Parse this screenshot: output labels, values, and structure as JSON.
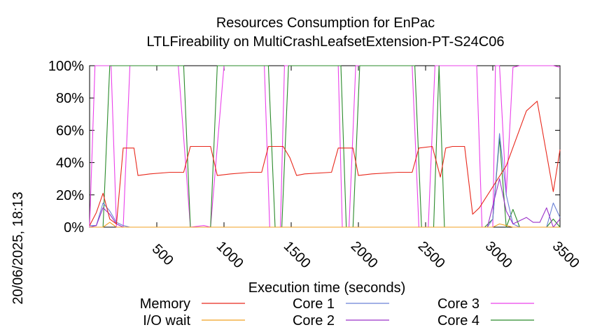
{
  "chart_data": {
    "type": "line",
    "title": "Resources Consumption for EnPac",
    "subtitle": "LTLFireability on MultiCrashLeafsetExtension-PT-S24C06",
    "xlabel": "Execution time (seconds)",
    "ylabel": "",
    "side_label": "20/06/2025, 18:13",
    "xlim": [
      0,
      3500
    ],
    "ylim": [
      0,
      100
    ],
    "x_ticks": [
      500,
      1000,
      1500,
      2000,
      2500,
      3000,
      3500
    ],
    "x_tick_labels": [
      "500",
      "1000",
      "1500",
      "2000",
      "2500",
      "3000",
      "3500"
    ],
    "y_ticks": [
      0,
      20,
      40,
      60,
      80,
      100
    ],
    "y_tick_labels": [
      "0%",
      "20%",
      "40%",
      "60%",
      "80%",
      "100%"
    ],
    "legend_placement": "bottom",
    "series": [
      {
        "name": "Memory",
        "color": "#e8281c",
        "points": [
          [
            0,
            1
          ],
          [
            50,
            9
          ],
          [
            100,
            21
          ],
          [
            150,
            5
          ],
          [
            200,
            2
          ],
          [
            250,
            49
          ],
          [
            330,
            49
          ],
          [
            360,
            32
          ],
          [
            450,
            33
          ],
          [
            600,
            34
          ],
          [
            700,
            34
          ],
          [
            750,
            50
          ],
          [
            900,
            50
          ],
          [
            950,
            32
          ],
          [
            1050,
            33
          ],
          [
            1200,
            34
          ],
          [
            1280,
            34
          ],
          [
            1330,
            50
          ],
          [
            1440,
            50
          ],
          [
            1490,
            43
          ],
          [
            1540,
            32
          ],
          [
            1600,
            33
          ],
          [
            1800,
            34
          ],
          [
            1850,
            49
          ],
          [
            1960,
            49
          ],
          [
            2000,
            32
          ],
          [
            2100,
            33
          ],
          [
            2300,
            34
          ],
          [
            2400,
            34
          ],
          [
            2450,
            49
          ],
          [
            2550,
            50
          ],
          [
            2610,
            31
          ],
          [
            2650,
            49
          ],
          [
            2700,
            50
          ],
          [
            2790,
            50
          ],
          [
            2850,
            8
          ],
          [
            2900,
            12
          ],
          [
            3100,
            38
          ],
          [
            3250,
            72
          ],
          [
            3330,
            78
          ],
          [
            3450,
            22
          ],
          [
            3500,
            48
          ]
        ]
      },
      {
        "name": "I/O wait",
        "color": "#f0a020",
        "points": [
          [
            0,
            0
          ],
          [
            50,
            0
          ],
          [
            100,
            0
          ],
          [
            150,
            3
          ],
          [
            200,
            0
          ],
          [
            3000,
            0
          ],
          [
            3050,
            2
          ],
          [
            3100,
            1
          ],
          [
            3150,
            0
          ],
          [
            3500,
            0
          ]
        ]
      },
      {
        "name": "Core 1",
        "color": "#6a80d6",
        "points": [
          [
            0,
            1
          ],
          [
            50,
            1
          ],
          [
            100,
            15
          ],
          [
            150,
            10
          ],
          [
            200,
            3
          ],
          [
            250,
            1
          ],
          [
            300,
            0
          ],
          [
            2960,
            0
          ],
          [
            3000,
            5
          ],
          [
            3050,
            58
          ],
          [
            3100,
            20
          ],
          [
            3150,
            2
          ],
          [
            3200,
            0
          ],
          [
            3400,
            0
          ],
          [
            3450,
            15
          ],
          [
            3500,
            6
          ]
        ]
      },
      {
        "name": "Core 2",
        "color": "#9a30c8",
        "points": [
          [
            0,
            0
          ],
          [
            50,
            1
          ],
          [
            100,
            12
          ],
          [
            150,
            8
          ],
          [
            200,
            2
          ],
          [
            250,
            0
          ],
          [
            300,
            0
          ],
          [
            2960,
            0
          ],
          [
            3050,
            30
          ],
          [
            3100,
            10
          ],
          [
            3150,
            2
          ],
          [
            3250,
            6
          ],
          [
            3300,
            3
          ],
          [
            3350,
            3
          ],
          [
            3400,
            12
          ],
          [
            3450,
            0
          ],
          [
            3500,
            5
          ]
        ]
      },
      {
        "name": "Core 3",
        "color": "#ea40ea",
        "points": [
          [
            0,
            0
          ],
          [
            40,
            100
          ],
          [
            160,
            100
          ],
          [
            200,
            0
          ],
          [
            250,
            0
          ],
          [
            300,
            100
          ],
          [
            660,
            100
          ],
          [
            750,
            0
          ],
          [
            850,
            1
          ],
          [
            900,
            0
          ],
          [
            1000,
            100
          ],
          [
            1300,
            100
          ],
          [
            1340,
            0
          ],
          [
            1420,
            0
          ],
          [
            1450,
            100
          ],
          [
            1850,
            100
          ],
          [
            1880,
            0
          ],
          [
            1930,
            0
          ],
          [
            1980,
            100
          ],
          [
            2400,
            100
          ],
          [
            2450,
            0
          ],
          [
            2520,
            0
          ],
          [
            2570,
            100
          ],
          [
            2880,
            100
          ],
          [
            2920,
            0
          ],
          [
            3000,
            0
          ],
          [
            3020,
            100
          ],
          [
            3050,
            100
          ],
          [
            3100,
            20
          ],
          [
            3150,
            99
          ],
          [
            3200,
            100
          ],
          [
            3450,
            100
          ],
          [
            3500,
            99
          ]
        ]
      },
      {
        "name": "Core 4",
        "color": "#2a8a2a",
        "points": [
          [
            0,
            0
          ],
          [
            100,
            0
          ],
          [
            150,
            100
          ],
          [
            200,
            100
          ],
          [
            250,
            100
          ],
          [
            700,
            100
          ],
          [
            750,
            0
          ],
          [
            900,
            0
          ],
          [
            950,
            100
          ],
          [
            1330,
            100
          ],
          [
            1380,
            0
          ],
          [
            1430,
            0
          ],
          [
            1480,
            100
          ],
          [
            1870,
            100
          ],
          [
            1910,
            0
          ],
          [
            1960,
            0
          ],
          [
            2010,
            100
          ],
          [
            2420,
            100
          ],
          [
            2470,
            0
          ],
          [
            2560,
            0
          ],
          [
            2600,
            100
          ],
          [
            2640,
            0
          ],
          [
            2940,
            0
          ],
          [
            3000,
            5
          ],
          [
            3050,
            55
          ],
          [
            3100,
            0
          ],
          [
            3150,
            11
          ],
          [
            3200,
            0
          ],
          [
            3400,
            0
          ],
          [
            3450,
            5
          ],
          [
            3500,
            0
          ]
        ]
      }
    ]
  }
}
